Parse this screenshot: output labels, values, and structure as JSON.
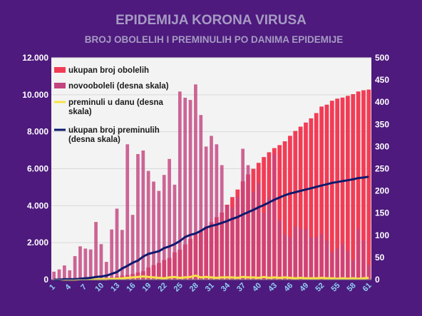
{
  "chart_data": {
    "type": "bar",
    "title": "EPIDEMIJA KORONA VIRUSA",
    "subtitle": "BROJ OBOLELIH I PREMINULIH PO DANIMA EPIDEMIJE",
    "x": [
      1,
      2,
      3,
      4,
      5,
      6,
      7,
      8,
      9,
      10,
      11,
      12,
      13,
      14,
      15,
      16,
      17,
      18,
      19,
      20,
      21,
      22,
      23,
      24,
      25,
      26,
      27,
      28,
      29,
      30,
      31,
      32,
      33,
      34,
      35,
      36,
      37,
      38,
      39,
      40,
      41,
      42,
      43,
      44,
      45,
      46,
      47,
      48,
      49,
      50,
      51,
      52,
      53,
      54,
      55,
      56,
      57,
      58,
      59,
      60,
      61
    ],
    "x_tick_labels": [
      "1",
      "4",
      "7",
      "10",
      "13",
      "16",
      "19",
      "22",
      "25",
      "28",
      "31",
      "34",
      "37",
      "40",
      "43",
      "46",
      "49",
      "52",
      "55",
      "58",
      "61"
    ],
    "y_left": {
      "ylim": [
        0,
        12000
      ],
      "ticks": [
        0,
        2000,
        4000,
        6000,
        8000,
        10000,
        12000
      ],
      "tick_labels": [
        "0",
        "2.000",
        "4.000",
        "6.000",
        "8.000",
        "10.000",
        "12.000"
      ]
    },
    "y_right": {
      "ylim": [
        0,
        500
      ],
      "ticks": [
        0,
        50,
        100,
        150,
        200,
        250,
        300,
        350,
        400,
        450,
        500
      ],
      "tick_labels": [
        "0",
        "50",
        "100",
        "150",
        "200",
        "250",
        "300",
        "350",
        "400",
        "450",
        "500"
      ]
    },
    "legend": {
      "placement": "top-left"
    },
    "grid": true,
    "series": [
      {
        "name": "ukupan broj obolelih",
        "kind": "bar",
        "axis": "left",
        "color": "#f23c55",
        "values": [
          1,
          5,
          12,
          18,
          24,
          35,
          46,
          57,
          65,
          72,
          103,
          126,
          171,
          222,
          249,
          303,
          384,
          457,
          659,
          785,
          900,
          1060,
          1171,
          1476,
          1624,
          1908,
          2200,
          2447,
          2666,
          2867,
          3105,
          3380,
          3630,
          4054,
          4465,
          4873,
          5318,
          5690,
          5994,
          6318,
          6630,
          6890,
          7114,
          7276,
          7483,
          7777,
          8042,
          8275,
          8497,
          8724,
          9009,
          9362,
          9464,
          9677,
          9791,
          9848,
          9943,
          10032,
          10176,
          10243,
          10280
        ]
      },
      {
        "name": "novooboleli (desna skala)",
        "kind": "bar",
        "axis": "right",
        "color": "#c44480",
        "values": [
          18,
          23,
          32,
          21,
          53,
          75,
          70,
          68,
          130,
          80,
          40,
          113,
          160,
          112,
          305,
          146,
          283,
          291,
          245,
          221,
          200,
          236,
          272,
          214,
          424,
          410,
          405,
          440,
          371,
          300,
          324,
          305,
          258,
          168,
          163,
          187,
          295,
          258,
          197,
          218,
          150,
          184,
          283,
          134,
          100,
          96,
          120,
          115,
          114,
          95,
          96,
          103,
          88,
          63,
          70,
          80,
          65,
          44,
          115,
          88,
          33
        ]
      },
      {
        "name": "preminuli u danu (desna skala)",
        "kind": "line",
        "axis": "right",
        "color": "#f7e04a",
        "values": [
          0,
          0,
          0,
          0,
          0,
          1,
          1,
          1,
          1,
          1,
          1,
          2,
          2,
          3,
          4,
          5,
          6,
          7,
          6,
          5,
          4,
          3,
          5,
          6,
          4,
          5,
          6,
          9,
          5,
          6,
          5,
          4,
          5,
          5,
          5,
          4,
          6,
          5,
          5,
          4,
          6,
          4,
          5,
          4,
          5,
          4,
          3,
          4,
          3,
          3,
          3,
          4,
          3,
          3,
          2,
          3,
          2,
          3,
          2,
          3,
          4
        ]
      },
      {
        "name": "ukupan broj preminulih (desna skala)",
        "kind": "line",
        "axis": "right",
        "color": "#0e1a6e",
        "values": [
          0,
          0,
          1,
          1,
          1,
          2,
          3,
          4,
          6,
          7,
          9,
          13,
          17,
          25,
          31,
          38,
          43,
          52,
          58,
          61,
          64,
          71,
          75,
          80,
          87,
          96,
          101,
          104,
          110,
          117,
          121,
          124,
          128,
          132,
          137,
          141,
          147,
          152,
          157,
          163,
          168,
          174,
          180,
          185,
          190,
          194,
          197,
          200,
          203,
          206,
          209,
          212,
          215,
          218,
          220,
          222,
          224,
          226,
          229,
          230,
          232
        ]
      }
    ]
  }
}
